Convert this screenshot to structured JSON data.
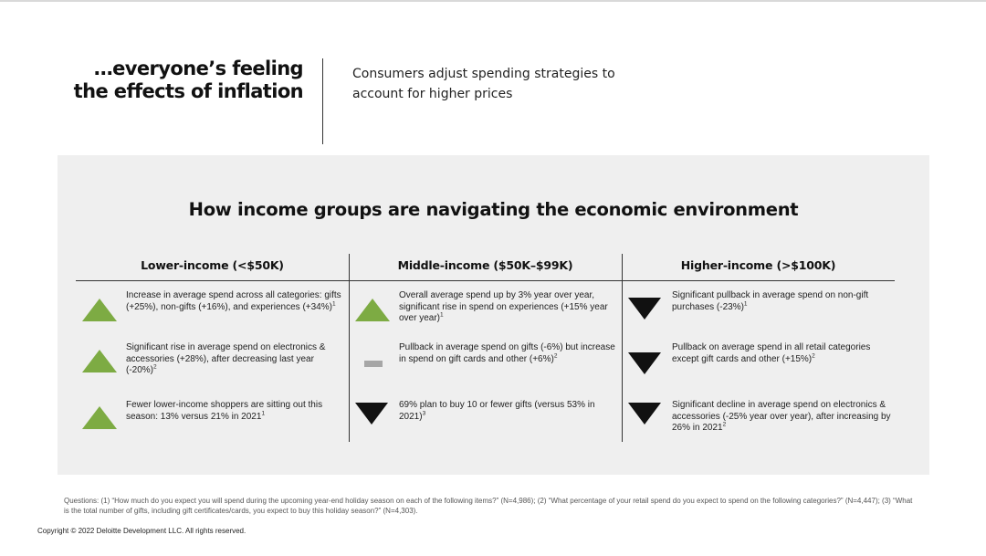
{
  "header": {
    "headline": "…everyone’s feeling the effects of inflation",
    "subhead": "Consumers adjust spending strategies to account for higher prices"
  },
  "panel": {
    "title": "How income groups are navigating the economic environment",
    "columns": [
      {
        "heading": "Lower-income (<$50K)",
        "rows": [
          {
            "icon": "up-triangle-icon",
            "direction": "up",
            "text": "Increase in average spend across all categories: gifts (+25%), non-gifts (+16%), and experiences (+34%)",
            "note": "1"
          },
          {
            "icon": "up-triangle-icon",
            "direction": "up",
            "text": "Significant rise in average spend on electronics & accessories (+28%), after decreasing last year (-20%)",
            "note": "2"
          },
          {
            "icon": "up-triangle-icon",
            "direction": "up",
            "text": "Fewer lower-income shoppers are sitting out this season: 13% versus 21% in 2021",
            "note": "1"
          }
        ]
      },
      {
        "heading": "Middle-income ($50K–$99K)",
        "rows": [
          {
            "icon": "up-triangle-icon",
            "direction": "up",
            "text": "Overall average spend up by 3% year over year, significant rise in spend on experiences (+15% year over year)",
            "note": "1"
          },
          {
            "icon": "flat-dash-icon",
            "direction": "flat",
            "text": "Pullback in average spend on gifts (-6%) but increase in spend on gift cards and other (+6%)",
            "note": "2"
          },
          {
            "icon": "down-triangle-icon",
            "direction": "down",
            "text": "69% plan to buy 10 or fewer gifts (versus 53% in 2021)",
            "note": "3"
          }
        ]
      },
      {
        "heading": "Higher-income (>$100K)",
        "rows": [
          {
            "icon": "down-triangle-icon",
            "direction": "down",
            "text": "Significant pullback in average spend on non-gift purchases (-23%)",
            "note": "1"
          },
          {
            "icon": "down-triangle-icon",
            "direction": "down",
            "text": "Pullback on average spend in all retail categories except gift cards and other (+15%)",
            "note": "2"
          },
          {
            "icon": "down-triangle-icon",
            "direction": "down",
            "text": "Significant decline in average spend on electronics & accessories (-25% year over year), after increasing by 26% in 2021",
            "note": "2"
          }
        ]
      }
    ]
  },
  "footer": {
    "questions": "Questions: (1) “How much do you expect you will spend during the upcoming year-end holiday season on each of the following items?” (N=4,986); (2) “What percentage of your retail spend do you expect to spend on the following categories?” (N=4,447); (3) “What is the total number of gifts, including gift certificates/cards, you expect to buy this holiday season?” (N=4,303).",
    "copyright": "Copyright © 2022 Deloitte Development LLC. All rights reserved."
  },
  "colors": {
    "up": "#7dab43",
    "down": "#111111",
    "flat": "#a6a6a6",
    "panel_bg": "#efefef"
  }
}
